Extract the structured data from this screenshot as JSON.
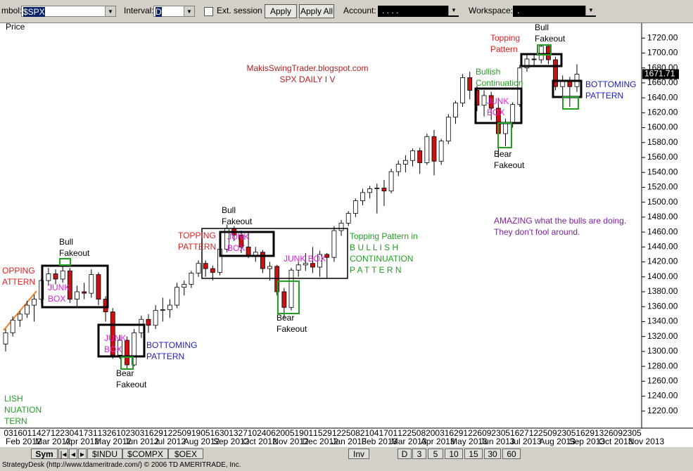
{
  "toolbar": {
    "symbol_label": "mbol:",
    "symbol": "$SPX",
    "interval_label": "Interval:",
    "interval": "D",
    "ext_session": "Ext. session",
    "apply": "Apply",
    "apply_all": "Apply All",
    "account_label": "Account:",
    "account": ". . . .",
    "workspace_label": "Workspace:",
    "workspace": "."
  },
  "chart_data": {
    "type": "candlestick",
    "y_label": "Price",
    "up_color": "#ffffff",
    "down_color": "#cc1111",
    "ylim": [
      1200,
      1740
    ],
    "yticks": [
      {
        "value": 1220,
        "label": "1220.00"
      },
      {
        "value": 1240,
        "label": "1240.00"
      },
      {
        "value": 1260,
        "label": "1260.00"
      },
      {
        "value": 1280,
        "label": "1280.00"
      },
      {
        "value": 1300,
        "label": "1300.00"
      },
      {
        "value": 1320,
        "label": "1320.00"
      },
      {
        "value": 1340,
        "label": "1340.00"
      },
      {
        "value": 1360,
        "label": "1360.00"
      },
      {
        "value": 1380,
        "label": "1380.00"
      },
      {
        "value": 1400,
        "label": "1400.00"
      },
      {
        "value": 1420,
        "label": "1420.00"
      },
      {
        "value": 1440,
        "label": "1440.00"
      },
      {
        "value": 1460,
        "label": "1460.00"
      },
      {
        "value": 1480,
        "label": "1480.00"
      },
      {
        "value": 1500,
        "label": "1500.00"
      },
      {
        "value": 1520,
        "label": "1520.00"
      },
      {
        "value": 1540,
        "label": "1540.00"
      },
      {
        "value": 1560,
        "label": "1560.00"
      },
      {
        "value": 1580,
        "label": "1580.00"
      },
      {
        "value": 1600,
        "label": "1600.00"
      },
      {
        "value": 1620,
        "label": "1620.00"
      },
      {
        "value": 1640,
        "label": "1640.00"
      },
      {
        "value": 1660,
        "label": "1660.00"
      },
      {
        "value": 1680,
        "label": "1680.00"
      },
      {
        "value": 1700,
        "label": "1700.00"
      },
      {
        "value": 1720,
        "label": "1720.00"
      }
    ],
    "candles": [
      [
        1310,
        1330,
        1300,
        1325
      ],
      [
        1325,
        1347,
        1320,
        1342
      ],
      [
        1342,
        1354,
        1333,
        1350
      ],
      [
        1350,
        1368,
        1345,
        1362
      ],
      [
        1362,
        1376,
        1340,
        1370
      ],
      [
        1370,
        1398,
        1365,
        1395
      ],
      [
        1395,
        1412,
        1388,
        1404
      ],
      [
        1404,
        1410,
        1390,
        1397
      ],
      [
        1397,
        1415,
        1392,
        1408
      ],
      [
        1408,
        1412,
        1365,
        1370
      ],
      [
        1370,
        1388,
        1360,
        1380
      ],
      [
        1380,
        1392,
        1370,
        1378
      ],
      [
        1378,
        1410,
        1372,
        1403
      ],
      [
        1403,
        1406,
        1362,
        1370
      ],
      [
        1370,
        1374,
        1340,
        1353
      ],
      [
        1353,
        1358,
        1290,
        1295
      ],
      [
        1295,
        1322,
        1290,
        1315
      ],
      [
        1315,
        1320,
        1276,
        1282
      ],
      [
        1282,
        1330,
        1280,
        1325
      ],
      [
        1325,
        1348,
        1318,
        1343
      ],
      [
        1343,
        1350,
        1325,
        1335
      ],
      [
        1335,
        1362,
        1330,
        1355
      ],
      [
        1355,
        1372,
        1340,
        1356
      ],
      [
        1356,
        1370,
        1345,
        1362
      ],
      [
        1362,
        1392,
        1358,
        1386
      ],
      [
        1386,
        1395,
        1375,
        1390
      ],
      [
        1390,
        1408,
        1385,
        1405
      ],
      [
        1405,
        1422,
        1400,
        1418
      ],
      [
        1418,
        1422,
        1400,
        1411
      ],
      [
        1411,
        1415,
        1395,
        1406
      ],
      [
        1406,
        1440,
        1402,
        1437
      ],
      [
        1437,
        1470,
        1433,
        1465
      ],
      [
        1465,
        1468,
        1448,
        1456
      ],
      [
        1456,
        1462,
        1432,
        1440
      ],
      [
        1440,
        1460,
        1425,
        1428
      ],
      [
        1428,
        1440,
        1420,
        1433
      ],
      [
        1433,
        1436,
        1405,
        1411
      ],
      [
        1411,
        1420,
        1395,
        1414
      ],
      [
        1414,
        1416,
        1375,
        1380
      ],
      [
        1380,
        1385,
        1345,
        1359
      ],
      [
        1359,
        1412,
        1355,
        1409
      ],
      [
        1409,
        1420,
        1400,
        1416
      ],
      [
        1416,
        1432,
        1408,
        1418
      ],
      [
        1418,
        1440,
        1405,
        1413
      ],
      [
        1413,
        1435,
        1400,
        1430
      ],
      [
        1430,
        1432,
        1398,
        1426
      ],
      [
        1426,
        1468,
        1420,
        1462
      ],
      [
        1462,
        1476,
        1455,
        1472
      ],
      [
        1472,
        1488,
        1468,
        1485
      ],
      [
        1485,
        1505,
        1480,
        1502
      ],
      [
        1502,
        1518,
        1496,
        1513
      ],
      [
        1513,
        1522,
        1505,
        1518
      ],
      [
        1518,
        1525,
        1485,
        1519
      ],
      [
        1519,
        1530,
        1495,
        1515
      ],
      [
        1515,
        1545,
        1512,
        1541
      ],
      [
        1541,
        1556,
        1535,
        1551
      ],
      [
        1551,
        1563,
        1540,
        1556
      ],
      [
        1556,
        1572,
        1548,
        1569
      ],
      [
        1569,
        1573,
        1538,
        1553
      ],
      [
        1553,
        1592,
        1550,
        1588
      ],
      [
        1588,
        1597,
        1536,
        1555
      ],
      [
        1555,
        1585,
        1550,
        1582
      ],
      [
        1582,
        1618,
        1578,
        1614
      ],
      [
        1614,
        1636,
        1605,
        1633
      ],
      [
        1633,
        1672,
        1628,
        1667
      ],
      [
        1667,
        1675,
        1638,
        1650
      ],
      [
        1650,
        1656,
        1622,
        1630
      ],
      [
        1630,
        1650,
        1615,
        1643
      ],
      [
        1643,
        1648,
        1610,
        1626
      ],
      [
        1626,
        1640,
        1560,
        1592
      ],
      [
        1592,
        1612,
        1575,
        1606
      ],
      [
        1606,
        1634,
        1600,
        1631
      ],
      [
        1631,
        1684,
        1628,
        1680
      ],
      [
        1680,
        1697,
        1675,
        1692
      ],
      [
        1692,
        1698,
        1682,
        1691
      ],
      [
        1691,
        1710,
        1686,
        1709
      ],
      [
        1709,
        1712,
        1685,
        1691
      ],
      [
        1691,
        1695,
        1650,
        1655
      ],
      [
        1655,
        1670,
        1640,
        1663
      ],
      [
        1663,
        1668,
        1628,
        1655
      ],
      [
        1655,
        1685,
        1648,
        1671.71
      ]
    ],
    "day_labels": [
      "03",
      "16",
      "01",
      "14",
      "27",
      "12",
      "23",
      "04",
      "17",
      "31",
      "13",
      "26",
      "10",
      "23",
      "03",
      "16",
      "29",
      "12",
      "25",
      "09",
      "19",
      "05",
      "16",
      "30",
      "13",
      "27",
      "10",
      "24",
      "06",
      "20",
      "05",
      "19",
      "01",
      "15",
      "29",
      "12",
      "25",
      "08",
      "21",
      "04",
      "17",
      "01",
      "12",
      "25",
      "08",
      "20",
      "03",
      "16",
      "29",
      "12",
      "26",
      "09",
      "23",
      "05",
      "16",
      "27",
      "12",
      "25",
      "09",
      "23",
      "05",
      "16",
      "29",
      "13",
      "26",
      "09",
      "23",
      "05"
    ],
    "month_labels": [
      "Feb 2012",
      "Mar 2012",
      "Apr 2012",
      "May 2012",
      "Jun 2012",
      "Jul 2012",
      "Aug 2012",
      "Sep 2012",
      "Oct 2012",
      "Nov 2012",
      "Dec 2012",
      "Jan 2013",
      "Feb 2013",
      "Mar 2013",
      "Apr 2013",
      "May 2013",
      "Jun 2013",
      "Jul 2013",
      "Aug 2013",
      "Sep 2013",
      "Oct 2013",
      "Nov 2013"
    ],
    "annotations": [
      {
        "lines": [
          "MakisSwingTrader.blogspot.com",
          "SPX DAILY  I V"
        ],
        "color": "#b22222"
      },
      {
        "lines": [
          "Bull",
          "Fakeout"
        ],
        "color": "#000000"
      },
      {
        "lines": [
          "OPPING",
          "ATTERN"
        ],
        "color": "#e02020"
      },
      {
        "lines": [
          "JUNK",
          "BOX"
        ],
        "color": "#e020e0"
      },
      {
        "lines": [
          "JUNK",
          "BOX"
        ],
        "color": "#e020e0"
      },
      {
        "lines": [
          "BOTTOMING",
          "PATTERN"
        ],
        "color": "#2020b0"
      },
      {
        "lines": [
          "Bear",
          "Fakeout"
        ],
        "color": "#000000"
      },
      {
        "lines": [
          "LISH",
          "NUATION",
          "TERN"
        ],
        "color": "#20a020"
      },
      {
        "lines": [
          "TOPPING",
          "PATTERN"
        ],
        "color": "#e02020"
      },
      {
        "lines": [
          "Bull",
          "Fakeout"
        ],
        "color": "#000000"
      },
      {
        "lines": [
          "JUNK",
          "BOX"
        ],
        "color": "#e020e0"
      },
      {
        "lines": [
          "JUNK BOX"
        ],
        "color": "#e020e0"
      },
      {
        "lines": [
          "Bear",
          "Fakeout"
        ],
        "color": "#000000"
      },
      {
        "lines": [
          "Topping Pattern in",
          "B U L L I S H",
          "CONTINUATION",
          "P A T T E R N"
        ],
        "color": "#20a020"
      },
      {
        "lines": [
          "AMAZING what the bulls are doing.",
          "They don't fool around."
        ],
        "color": "#8020a0"
      },
      {
        "lines": [
          "Topping",
          "Pattern"
        ],
        "color": "#e02020"
      },
      {
        "lines": [
          "Bull",
          "Fakeout"
        ],
        "color": "#000000"
      },
      {
        "lines": [
          "Bullish",
          "Continuation"
        ],
        "color": "#20a020"
      },
      {
        "lines": [
          "JUNK",
          "BOX"
        ],
        "color": "#e020e0"
      },
      {
        "lines": [
          "Bear",
          "Fakeout"
        ],
        "color": "#000000"
      },
      {
        "lines": [
          "BOTTOMING",
          "PATTERN"
        ],
        "color": "#2020b0"
      }
    ]
  },
  "tabs": {
    "nav": "Sym",
    "symbols": [
      "$INDU",
      "$COMPX",
      "$OEX"
    ],
    "right": [
      "Inv",
      "D",
      "3",
      "5",
      "10",
      "15",
      "30",
      "60"
    ]
  },
  "status": "StrategyDesk (http://www.tdameritrade.com/) © 2006 TD AMERITRADE, Inc."
}
